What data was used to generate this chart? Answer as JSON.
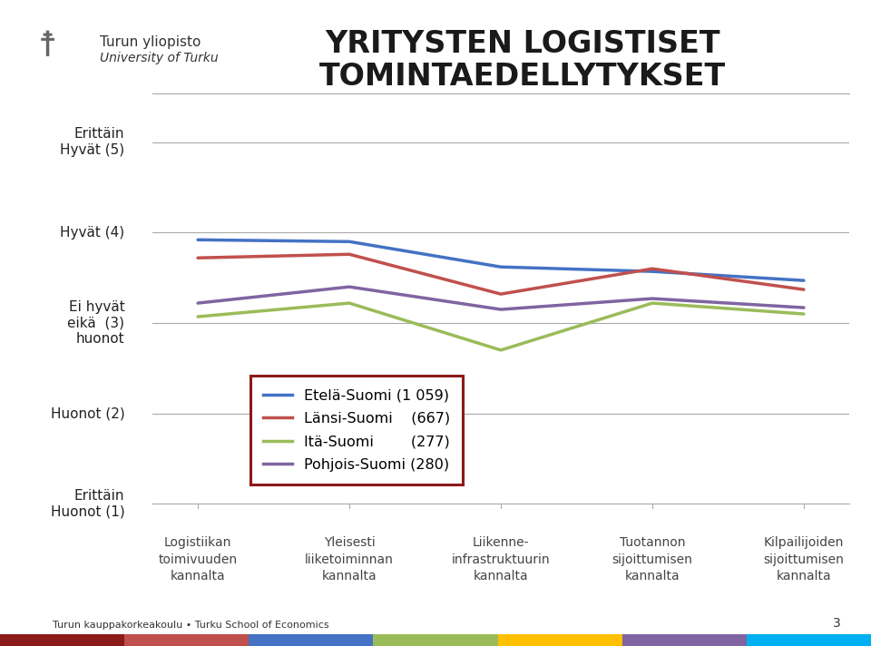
{
  "title_line1": "YRITYSTEN LOGISTISET",
  "title_line2": "TOMINTAEDELLYTYKSET",
  "categories": [
    "Logistiikan\ntoimivuuden\nkannalta",
    "Yleisesti\nliiketoiminnan\nkannalta",
    "Liikenne-\ninfrastruktuurin\nkannalta",
    "Tuotannon\nsijoittumisen\nkannalta",
    "Kilpailijoiden\nsijoittumisen\nkannalta"
  ],
  "series": [
    {
      "label": "Etelä-Suomi (1 059)",
      "color": "#4472C4",
      "values": [
        3.92,
        3.9,
        3.62,
        3.57,
        3.47
      ]
    },
    {
      "label": "Länsi-Suomi    (667)",
      "color": "#C0504D",
      "values": [
        3.72,
        3.76,
        3.32,
        3.6,
        3.37
      ]
    },
    {
      "label": "Itä-Suomi        (277)",
      "color": "#9BBB59",
      "values": [
        3.07,
        3.22,
        2.7,
        3.22,
        3.1
      ]
    },
    {
      "label": "Pohjois-Suomi (280)",
      "color": "#8064A2",
      "values": [
        3.22,
        3.4,
        3.15,
        3.27,
        3.17
      ]
    }
  ],
  "yticks": [
    1,
    2,
    3,
    4,
    5
  ],
  "ylabels": [
    "Erittäin\nHuonot (1)",
    "Huonot (2)",
    "Ei hyvät\neikä  (3)\nhuonot",
    "Hyvät (4)",
    "Erittäin\nHyvät (5)"
  ],
  "ylim": [
    1.0,
    5.5
  ],
  "background_color": "#FFFFFF",
  "grid_color": "#AAAAAA",
  "legend_box_color": "#8B1A1A",
  "title_fontsize": 24,
  "label_fontsize": 10,
  "tick_fontsize": 11,
  "line_width": 2.5,
  "bottom_strip_colors": [
    "#8B1A1A",
    "#C0504D",
    "#4472C4",
    "#9BBB59",
    "#FFC000",
    "#8064A2",
    "#00B0F0"
  ],
  "logo_text_line1": "Turun yliopisto",
  "logo_text_line2": "University of Turku",
  "footer_text": "Turun kauppakorkeakoulu • Turku School of Economics",
  "page_number": "3"
}
